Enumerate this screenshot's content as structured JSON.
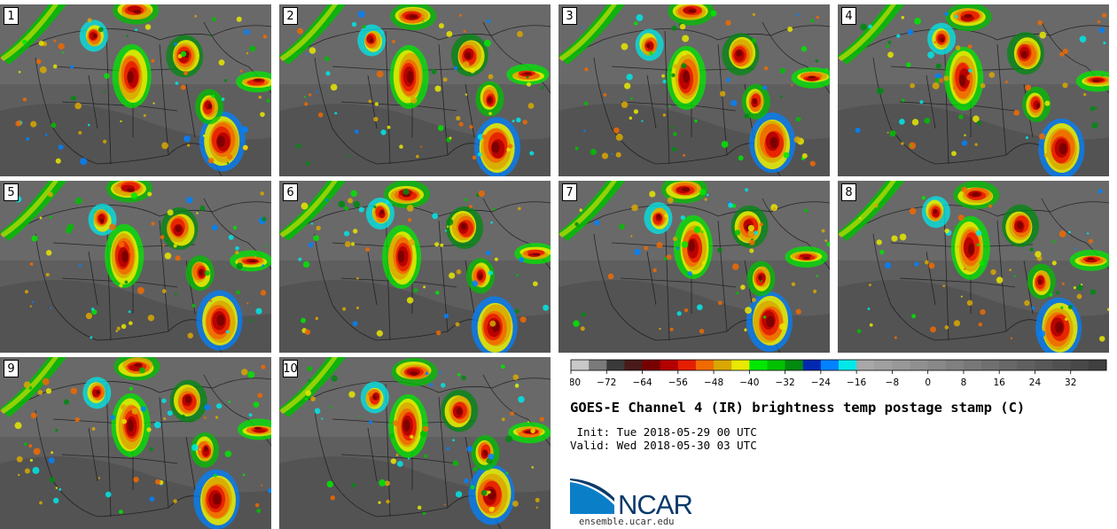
{
  "panels": [
    {
      "label": "1"
    },
    {
      "label": "2"
    },
    {
      "label": "3"
    },
    {
      "label": "4"
    },
    {
      "label": "5"
    },
    {
      "label": "6"
    },
    {
      "label": "7"
    },
    {
      "label": "8"
    },
    {
      "label": "9"
    },
    {
      "label": "10"
    }
  ],
  "colorbar": {
    "tick_labels": [
      "−80",
      "−72",
      "−64",
      "−56",
      "−48",
      "−40",
      "−32",
      "−24",
      "−16",
      "−8",
      "0",
      "8",
      "16",
      "24",
      "32"
    ],
    "min": -80,
    "max": 40,
    "step": 4,
    "colors": [
      "#c8c8c8",
      "#7a7a7a",
      "#3a3a3a",
      "#4a1a1a",
      "#780000",
      "#b40000",
      "#e61e00",
      "#f06a00",
      "#d9a800",
      "#e8e800",
      "#00e800",
      "#00c000",
      "#008a10",
      "#0028b0",
      "#0082ff",
      "#00e8e8",
      "#a8a8a8",
      "#a0a0a0",
      "#989898",
      "#909090",
      "#888888",
      "#808080",
      "#787878",
      "#707070",
      "#686868",
      "#606060",
      "#585858",
      "#505050",
      "#484848",
      "#404040"
    ]
  },
  "title": "GOES-E Channel 4 (IR) brightness temp postage stamp (C)",
  "init": " Init: Tue 2018-05-29 00 UTC",
  "valid": "Valid: Wed 2018-05-30 03 UTC",
  "logo": {
    "text": "NCAR",
    "url": "ensemble.ucar.edu",
    "color": "#0a3a6a",
    "accent": "#0a7fc8"
  }
}
